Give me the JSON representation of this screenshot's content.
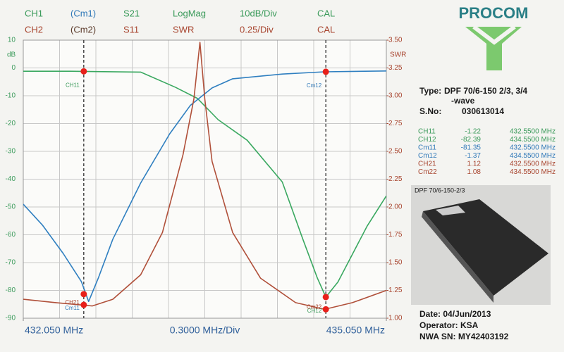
{
  "header": {
    "rows": [
      [
        {
          "text": "CH1",
          "color": "#3a9a5a"
        },
        {
          "text": "(Cm1)",
          "color": "#2f78b8"
        },
        {
          "text": "S21",
          "color": "#3a9a5a"
        },
        {
          "text": "LogMag",
          "color": "#3a9a5a"
        },
        {
          "text": "10dB/Div",
          "color": "#3a9a5a"
        },
        {
          "text": "CAL",
          "color": "#3a9a5a"
        }
      ],
      [
        {
          "text": "CH2",
          "color": "#a8452f"
        },
        {
          "text": "(Cm2)",
          "color": "#5a3a2a"
        },
        {
          "text": "S11",
          "color": "#a8452f"
        },
        {
          "text": "SWR",
          "color": "#a8452f"
        },
        {
          "text": "0.25/Div",
          "color": "#a8452f"
        },
        {
          "text": "CAL",
          "color": "#a8452f"
        }
      ]
    ]
  },
  "chart_data": {
    "type": "line",
    "ylabel": "dB",
    "y2label": "SWR",
    "xlim": [
      432.05,
      435.05
    ],
    "xticks": [
      {
        "value": 432.05,
        "label": "432.050 MHz"
      },
      {
        "value": 435.05,
        "label": "435.050 MHz"
      }
    ],
    "x_div_label": "0.3000 MHz/Div",
    "xgrid": [
      432.05,
      432.35,
      432.65,
      432.95,
      433.25,
      433.55,
      433.85,
      434.15,
      434.45,
      434.75,
      435.05
    ],
    "ylim": [
      -90,
      10
    ],
    "yticks": [
      10,
      0,
      -10,
      -20,
      -30,
      -40,
      -50,
      -60,
      -70,
      -80,
      -90
    ],
    "y2lim": [
      1.0,
      3.5
    ],
    "y2ticks": [
      {
        "value": 3.5,
        "label": "3.50"
      },
      3.25,
      {
        "value": 3.0,
        "label": "3.00"
      },
      2.75,
      {
        "value": 2.5,
        "label": "2.50"
      },
      2.25,
      {
        "value": 2.0,
        "label": "2.00"
      },
      1.75,
      {
        "value": 1.5,
        "label": "1.50"
      },
      1.25,
      {
        "value": 1.0,
        "label": "1.00"
      }
    ],
    "grid": true,
    "series": [
      {
        "name": "S21",
        "color": "#3aa860",
        "x": [
          432.05,
          432.44,
          433.02,
          433.31,
          433.49,
          433.66,
          433.9,
          434.19,
          434.36,
          434.48,
          434.55,
          434.65,
          434.77,
          434.89,
          435.05
        ],
        "values": [
          -1.2,
          -1.2,
          -1.5,
          -7,
          -11,
          -18.6,
          -26,
          -41,
          -61.6,
          -75.6,
          -82.4,
          -77,
          -67,
          -57,
          -46
        ]
      },
      {
        "name": "S11",
        "color": "#2f7fc0",
        "x": [
          432.05,
          432.21,
          432.38,
          432.53,
          432.59,
          432.67,
          432.79,
          433.02,
          433.26,
          433.43,
          433.61,
          433.78,
          434.19,
          434.54,
          435.05
        ],
        "values": [
          -49,
          -56.6,
          -66.7,
          -76.8,
          -84,
          -75.6,
          -61.6,
          -41.4,
          -23.7,
          -13.5,
          -7.2,
          -3.9,
          -2.2,
          -1.4,
          -1.1
        ]
      },
      {
        "name": "SWR",
        "color": "#b0503a",
        "axis": "y2",
        "x": [
          432.05,
          432.32,
          432.62,
          432.79,
          433.02,
          433.2,
          433.37,
          433.46,
          433.51,
          433.55,
          433.61,
          433.78,
          434.01,
          434.3,
          434.54,
          434.77,
          435.05
        ],
        "values": [
          1.17,
          1.14,
          1.11,
          1.17,
          1.39,
          1.77,
          2.47,
          2.97,
          3.48,
          2.97,
          2.41,
          1.77,
          1.36,
          1.14,
          1.08,
          1.14,
          1.25
        ]
      }
    ],
    "markers": [
      {
        "name": "CH11",
        "value": -1.22,
        "freq": {
          "value": 432.55,
          "label": "432.5500 MHz"
        },
        "color": "#3a9a5a"
      },
      {
        "name": "CH12",
        "value": -82.39,
        "freq": {
          "value": 434.55,
          "label": "434.5500 MHz"
        },
        "color": "#3a9a5a"
      },
      {
        "name": "Cm11",
        "value": -81.35,
        "freq": {
          "value": 432.55,
          "label": "432.5500 MHz"
        },
        "color": "#2f78b8"
      },
      {
        "name": "Cm12",
        "value": -1.37,
        "freq": {
          "value": 434.55,
          "label": "434.5500 MHz"
        },
        "color": "#2f78b8"
      },
      {
        "name": "CH21",
        "value": 1.12,
        "freq": {
          "value": 432.55,
          "label": "432.5500 MHz"
        },
        "color": "#a8452f",
        "axis": "y2"
      },
      {
        "name": "Cm22",
        "value": 1.08,
        "freq": {
          "value": 434.55,
          "label": "434.5500 MHz"
        },
        "color": "#a8452f",
        "axis": "y2"
      }
    ],
    "marker_color": "#e8201a"
  },
  "logo": "PROCOM",
  "info": {
    "type_label": "Type:",
    "type_lines": [
      "DPF 70/6-150 2/3, 3/4",
      "-wave"
    ],
    "serial_label": "S.No:",
    "serial": "030613014",
    "photo_caption": "DPF 70/6-150-2/3",
    "date": "Date: 04/Jun/2013",
    "operator": "Operator: KSA",
    "nwa_sn": "NWA SN: MY42403192"
  }
}
